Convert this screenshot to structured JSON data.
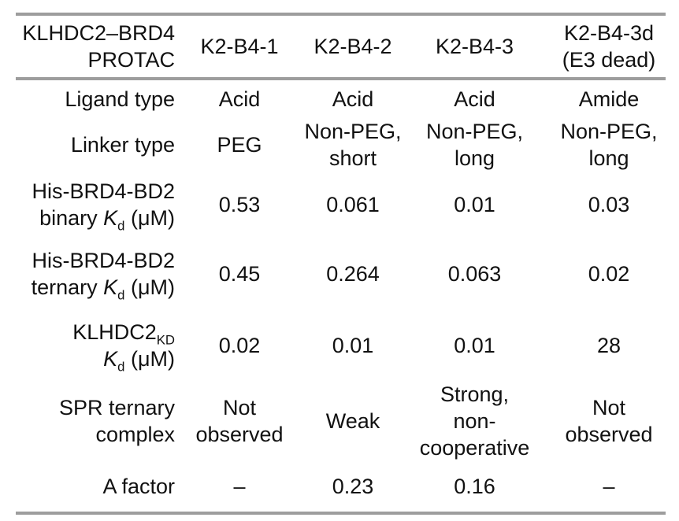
{
  "page": {
    "background": "#ffffff",
    "text_color": "#111111",
    "rule_color": "#9d9d9d"
  },
  "table": {
    "header": {
      "label": {
        "lines": [
          [
            {
              "t": "KLHDC2–BRD4"
            }
          ],
          [
            {
              "t": "PROTAC"
            }
          ]
        ]
      },
      "columns": [
        {
          "lines": [
            [
              {
                "t": "K2-B4-1"
              }
            ]
          ]
        },
        {
          "lines": [
            [
              {
                "t": "K2-B4-2"
              }
            ]
          ]
        },
        {
          "lines": [
            [
              {
                "t": "K2-B4-3"
              }
            ]
          ]
        },
        {
          "lines": [
            [
              {
                "t": "K2-B4-3d"
              }
            ],
            [
              {
                "t": "(E3 dead)"
              }
            ]
          ]
        }
      ]
    },
    "rows": [
      {
        "name": "ligand-type",
        "label": {
          "lines": [
            [
              {
                "t": "Ligand type"
              }
            ]
          ]
        },
        "values": [
          {
            "lines": [
              [
                {
                  "t": "Acid"
                }
              ]
            ]
          },
          {
            "lines": [
              [
                {
                  "t": "Acid"
                }
              ]
            ]
          },
          {
            "lines": [
              [
                {
                  "t": "Acid"
                }
              ]
            ]
          },
          {
            "lines": [
              [
                {
                  "t": "Amide"
                }
              ]
            ]
          }
        ]
      },
      {
        "name": "linker-type",
        "label": {
          "lines": [
            [
              {
                "t": "Linker type"
              }
            ]
          ]
        },
        "values": [
          {
            "lines": [
              [
                {
                  "t": "PEG"
                }
              ]
            ]
          },
          {
            "lines": [
              [
                {
                  "t": "Non-PEG,"
                }
              ],
              [
                {
                  "t": "short"
                }
              ]
            ]
          },
          {
            "lines": [
              [
                {
                  "t": "Non-PEG,"
                }
              ],
              [
                {
                  "t": "long"
                }
              ]
            ]
          },
          {
            "lines": [
              [
                {
                  "t": "Non-PEG,"
                }
              ],
              [
                {
                  "t": "long"
                }
              ]
            ]
          }
        ]
      },
      {
        "name": "his-brd4-bd2-binary-kd",
        "label": {
          "lines": [
            [
              {
                "t": "His-BRD4-BD2"
              }
            ],
            [
              {
                "t": "binary "
              },
              {
                "t": "K",
                "i": true
              },
              {
                "t": "d",
                "sub": true
              },
              {
                "t": " (μM)"
              }
            ]
          ]
        },
        "values": [
          {
            "lines": [
              [
                {
                  "t": "0.53"
                }
              ]
            ]
          },
          {
            "lines": [
              [
                {
                  "t": "0.061"
                }
              ]
            ]
          },
          {
            "lines": [
              [
                {
                  "t": "0.01"
                }
              ]
            ]
          },
          {
            "lines": [
              [
                {
                  "t": "0.03"
                }
              ]
            ]
          }
        ]
      },
      {
        "name": "his-brd4-bd2-ternary-kd",
        "label": {
          "lines": [
            [
              {
                "t": "His-BRD4-BD2"
              }
            ],
            [
              {
                "t": "ternary "
              },
              {
                "t": "K",
                "i": true
              },
              {
                "t": "d",
                "sub": true
              },
              {
                "t": " (μM)"
              }
            ]
          ]
        },
        "values": [
          {
            "lines": [
              [
                {
                  "t": "0.45"
                }
              ]
            ]
          },
          {
            "lines": [
              [
                {
                  "t": "0.264"
                }
              ]
            ]
          },
          {
            "lines": [
              [
                {
                  "t": "0.063"
                }
              ]
            ]
          },
          {
            "lines": [
              [
                {
                  "t": "0.02"
                }
              ]
            ]
          }
        ]
      },
      {
        "name": "klhdc2-kd",
        "label": {
          "lines": [
            [
              {
                "t": "KLHDC2"
              },
              {
                "t": "KD",
                "sub": true
              }
            ],
            [
              {
                "t": "K",
                "i": true
              },
              {
                "t": "d",
                "sub": true
              },
              {
                "t": " (μM)"
              }
            ]
          ]
        },
        "values": [
          {
            "lines": [
              [
                {
                  "t": "0.02"
                }
              ]
            ]
          },
          {
            "lines": [
              [
                {
                  "t": "0.01"
                }
              ]
            ]
          },
          {
            "lines": [
              [
                {
                  "t": "0.01"
                }
              ]
            ]
          },
          {
            "lines": [
              [
                {
                  "t": "28"
                }
              ]
            ]
          }
        ]
      },
      {
        "name": "spr-ternary-complex",
        "label": {
          "lines": [
            [
              {
                "t": "SPR ternary"
              }
            ],
            [
              {
                "t": "complex"
              }
            ]
          ]
        },
        "values": [
          {
            "lines": [
              [
                {
                  "t": "Not"
                }
              ],
              [
                {
                  "t": "observed"
                }
              ]
            ]
          },
          {
            "lines": [
              [
                {
                  "t": "Weak"
                }
              ]
            ]
          },
          {
            "lines": [
              [
                {
                  "t": "Strong, non-"
                }
              ],
              [
                {
                  "t": "cooperative"
                }
              ]
            ]
          },
          {
            "lines": [
              [
                {
                  "t": "Not"
                }
              ],
              [
                {
                  "t": "observed"
                }
              ]
            ]
          }
        ]
      },
      {
        "name": "a-factor",
        "label": {
          "lines": [
            [
              {
                "t": "A factor"
              }
            ]
          ]
        },
        "values": [
          {
            "lines": [
              [
                {
                  "t": "–"
                }
              ]
            ]
          },
          {
            "lines": [
              [
                {
                  "t": "0.23"
                }
              ]
            ]
          },
          {
            "lines": [
              [
                {
                  "t": "0.16"
                }
              ]
            ]
          },
          {
            "lines": [
              [
                {
                  "t": "–"
                }
              ]
            ]
          }
        ]
      }
    ]
  }
}
